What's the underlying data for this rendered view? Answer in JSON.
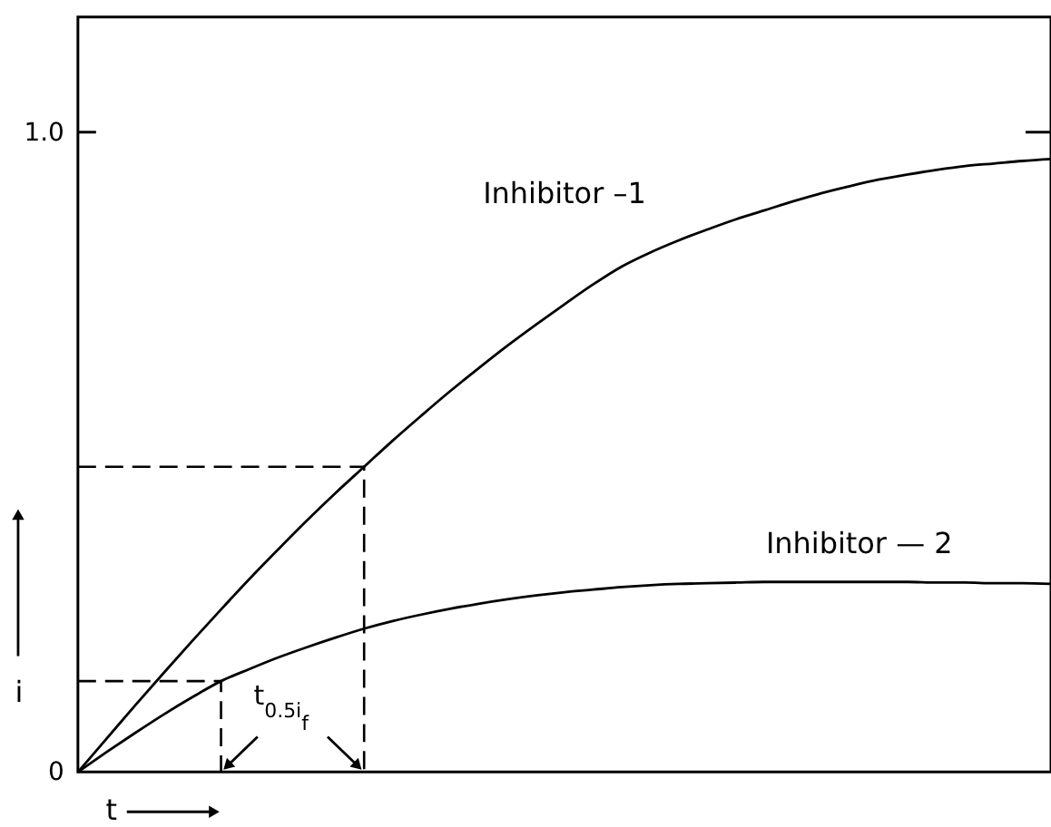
{
  "chart_data": {
    "type": "line",
    "xlabel": "t",
    "ylabel": "i",
    "categories": [
      null,
      null,
      null,
      null,
      null,
      null,
      null,
      null,
      null,
      null,
      null,
      null,
      null,
      null,
      null,
      null,
      null,
      null,
      null,
      null,
      null,
      null,
      null,
      null,
      null,
      null,
      null,
      null,
      null,
      null,
      null,
      null,
      null,
      null,
      null
    ],
    "ylim": [
      0,
      1.18
    ],
    "yticks": [
      0,
      {
        "value": 1,
        "label": "1.0"
      }
    ],
    "tick_labels": "y",
    "annotations": [
      "t$_{0.5i}$$_{f}$"
    ],
    "series": [
      {
        "name": "Inhibitor –1",
        "color": "#000000",
        "values": [
          0,
          0.052,
          0.104,
          0.155,
          0.205,
          0.254,
          0.302,
          0.348,
          0.393,
          0.436,
          0.477,
          0.518,
          0.557,
          0.595,
          0.631,
          0.666,
          0.699,
          0.731,
          0.762,
          0.79,
          0.812,
          0.831,
          0.848,
          0.864,
          0.878,
          0.892,
          0.905,
          0.916,
          0.926,
          0.934,
          0.941,
          0.947,
          0.951,
          0.955,
          0.958
        ]
      },
      {
        "name": "Inhibitor — 2",
        "color": "#000000",
        "values": [
          0,
          0.031,
          0.061,
          0.09,
          0.117,
          0.142,
          0.161,
          0.179,
          0.195,
          0.21,
          0.224,
          0.236,
          0.246,
          0.255,
          0.263,
          0.27,
          0.276,
          0.281,
          0.285,
          0.289,
          0.292,
          0.294,
          0.295,
          0.296,
          0.297,
          0.297,
          0.297,
          0.297,
          0.297,
          0.297,
          0.296,
          0.296,
          0.295,
          0.295,
          0.294
        ]
      },
      {
        "type": "step",
        "line_style": "dashed",
        "color": "#000000",
        "values": [
          0.477,
          0.477,
          0.477,
          0.477,
          0.477,
          0.477,
          0.477,
          0.477,
          0.477,
          0.477,
          0,
          null,
          null,
          null,
          null,
          null,
          null,
          null,
          null,
          null,
          null,
          null,
          null,
          null,
          null,
          null,
          null,
          null,
          null,
          null,
          null,
          null,
          null,
          null,
          null
        ]
      },
      {
        "type": "step",
        "line_style": "dashed",
        "color": "#000000",
        "values": [
          0.142,
          0.142,
          0.142,
          0.142,
          0.142,
          0,
          null,
          null,
          null,
          null,
          null,
          null,
          null,
          null,
          null,
          null,
          null,
          null,
          null,
          null,
          null,
          null,
          null,
          null,
          null,
          null,
          null,
          null,
          null,
          null,
          null,
          null,
          null,
          null,
          null
        ]
      }
    ]
  }
}
